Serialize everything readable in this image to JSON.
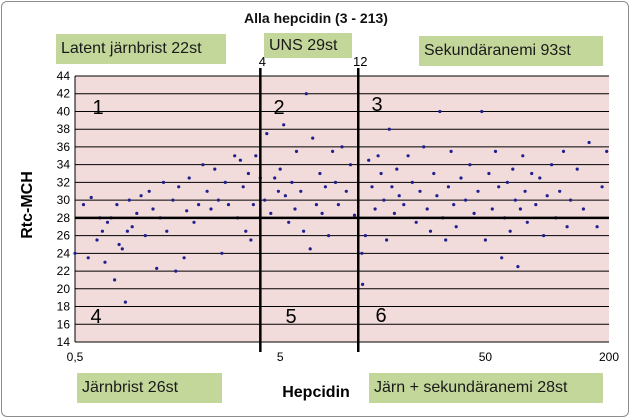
{
  "chart_data": {
    "type": "scatter",
    "title": "Alla hepcidin (3 - 213)",
    "xlabel": "Hepcidin",
    "ylabel": "Rtc-MCH",
    "x_scale": "log",
    "xlim": [
      0.5,
      200
    ],
    "ylim": [
      14,
      44
    ],
    "x_tick_labels": [
      "0,5",
      "5",
      "50",
      "200"
    ],
    "x_ticks": [
      0.5,
      5,
      50,
      200
    ],
    "y_ticks": [
      14,
      16,
      18,
      20,
      22,
      24,
      26,
      28,
      30,
      32,
      34,
      36,
      38,
      40,
      42,
      44
    ],
    "grid": "horizontal",
    "thresholds": {
      "x": [
        4,
        12
      ],
      "y": 28,
      "x_labels": [
        "4",
        "12"
      ]
    },
    "quadrants": [
      "1",
      "2",
      "3",
      "4",
      "5",
      "6"
    ],
    "annotations": {
      "latent": "Latent järnbrist  22st",
      "uns": "UNS 29st",
      "sekundar": "Sekundäranemi 93st",
      "jarnbrist": "Järnbrist  26st",
      "jarn_sek": "Järn + sekundäranemi  28st"
    },
    "series": [
      {
        "points": [
          [
            0.5,
            24.0
          ],
          [
            0.55,
            29.5
          ],
          [
            0.58,
            23.5
          ],
          [
            0.6,
            30.3
          ],
          [
            0.64,
            25.5
          ],
          [
            0.66,
            28.0
          ],
          [
            0.68,
            26.5
          ],
          [
            0.7,
            23.0
          ],
          [
            0.72,
            27.5
          ],
          [
            0.75,
            28.0
          ],
          [
            0.78,
            21.0
          ],
          [
            0.8,
            29.5
          ],
          [
            0.82,
            25.0
          ],
          [
            0.85,
            24.5
          ],
          [
            0.88,
            18.5
          ],
          [
            0.9,
            26.5
          ],
          [
            0.92,
            30.0
          ],
          [
            0.95,
            27.0
          ],
          [
            1.0,
            28.5
          ],
          [
            1.05,
            30.5
          ],
          [
            1.1,
            26.0
          ],
          [
            1.15,
            31.0
          ],
          [
            1.2,
            29.0
          ],
          [
            1.25,
            22.3
          ],
          [
            1.3,
            28.0
          ],
          [
            1.35,
            32.0
          ],
          [
            1.4,
            26.5
          ],
          [
            1.5,
            30.0
          ],
          [
            1.55,
            22.0
          ],
          [
            1.6,
            31.5
          ],
          [
            1.7,
            23.5
          ],
          [
            1.75,
            28.8
          ],
          [
            1.8,
            32.5
          ],
          [
            1.9,
            27.5
          ],
          [
            2.0,
            29.5
          ],
          [
            2.1,
            34.0
          ],
          [
            2.2,
            31.0
          ],
          [
            2.3,
            29.0
          ],
          [
            2.4,
            33.5
          ],
          [
            2.5,
            30.0
          ],
          [
            2.6,
            24.0
          ],
          [
            2.7,
            32.0
          ],
          [
            2.8,
            29.5
          ],
          [
            3.0,
            35.0
          ],
          [
            3.1,
            28.0
          ],
          [
            3.2,
            34.5
          ],
          [
            3.3,
            31.5
          ],
          [
            3.4,
            26.5
          ],
          [
            3.5,
            33.0
          ],
          [
            3.6,
            25.5
          ],
          [
            3.7,
            29.5
          ],
          [
            3.8,
            35.0
          ],
          [
            4.0,
            32.5
          ],
          [
            4.2,
            30.0
          ],
          [
            4.3,
            37.5
          ],
          [
            4.5,
            28.5
          ],
          [
            4.7,
            32.5
          ],
          [
            4.9,
            31.0
          ],
          [
            5.0,
            33.5
          ],
          [
            5.2,
            38.5
          ],
          [
            5.3,
            30.5
          ],
          [
            5.5,
            27.5
          ],
          [
            5.7,
            32.0
          ],
          [
            5.9,
            29.0
          ],
          [
            6.0,
            35.5
          ],
          [
            6.3,
            31.0
          ],
          [
            6.5,
            26.5
          ],
          [
            6.7,
            42.0
          ],
          [
            7.0,
            24.5
          ],
          [
            7.2,
            37.0
          ],
          [
            7.5,
            29.5
          ],
          [
            7.8,
            33.0
          ],
          [
            8.0,
            28.5
          ],
          [
            8.3,
            31.5
          ],
          [
            8.6,
            26.0
          ],
          [
            9.0,
            35.5
          ],
          [
            9.3,
            32.0
          ],
          [
            9.6,
            29.5
          ],
          [
            10.0,
            36.0
          ],
          [
            10.5,
            31.0
          ],
          [
            11.0,
            34.0
          ],
          [
            11.5,
            28.3
          ],
          [
            12.5,
            24.0
          ],
          [
            12.6,
            20.5
          ],
          [
            13.0,
            26.0
          ],
          [
            13.5,
            34.5
          ],
          [
            14.0,
            31.5
          ],
          [
            14.5,
            29.0
          ],
          [
            15.0,
            35.0
          ],
          [
            15.5,
            33.0
          ],
          [
            16.0,
            30.0
          ],
          [
            16.5,
            25.5
          ],
          [
            17.0,
            38.0
          ],
          [
            17.5,
            31.5
          ],
          [
            18.0,
            28.5
          ],
          [
            18.5,
            33.5
          ],
          [
            19.0,
            30.5
          ],
          [
            20.0,
            29.5
          ],
          [
            21.0,
            35.0
          ],
          [
            22.0,
            32.0
          ],
          [
            23.0,
            27.5
          ],
          [
            24.0,
            31.0
          ],
          [
            25.0,
            36.0
          ],
          [
            26.0,
            29.0
          ],
          [
            27.0,
            26.5
          ],
          [
            28.0,
            33.0
          ],
          [
            29.0,
            30.5
          ],
          [
            30.0,
            40.0
          ],
          [
            31.0,
            28.0
          ],
          [
            32.0,
            25.5
          ],
          [
            33.0,
            31.5
          ],
          [
            34.0,
            35.5
          ],
          [
            35.0,
            29.5
          ],
          [
            36.0,
            27.0
          ],
          [
            38.0,
            32.5
          ],
          [
            40.0,
            30.0
          ],
          [
            42.0,
            34.0
          ],
          [
            44.0,
            28.5
          ],
          [
            46.0,
            31.0
          ],
          [
            48.0,
            40.0
          ],
          [
            50.0,
            25.5
          ],
          [
            52.0,
            33.0
          ],
          [
            54.0,
            29.0
          ],
          [
            56.0,
            35.5
          ],
          [
            58.0,
            31.5
          ],
          [
            60.0,
            23.5
          ],
          [
            62.0,
            28.0
          ],
          [
            64.0,
            32.0
          ],
          [
            66.0,
            26.5
          ],
          [
            68.0,
            33.5
          ],
          [
            70.0,
            30.0
          ],
          [
            72.0,
            22.5
          ],
          [
            74.0,
            29.0
          ],
          [
            76.0,
            35.0
          ],
          [
            78.0,
            31.0
          ],
          [
            80.0,
            27.5
          ],
          [
            84.0,
            33.0
          ],
          [
            88.0,
            29.5
          ],
          [
            92.0,
            32.5
          ],
          [
            96.0,
            26.0
          ],
          [
            100.0,
            30.5
          ],
          [
            105.0,
            34.0
          ],
          [
            110.0,
            28.0
          ],
          [
            115.0,
            31.0
          ],
          [
            120.0,
            35.5
          ],
          [
            125.0,
            27.0
          ],
          [
            130.0,
            30.0
          ],
          [
            140.0,
            33.5
          ],
          [
            150.0,
            29.0
          ],
          [
            160.0,
            36.5
          ],
          [
            175.0,
            27.0
          ],
          [
            185.0,
            31.5
          ],
          [
            195.0,
            35.5
          ]
        ]
      }
    ]
  }
}
